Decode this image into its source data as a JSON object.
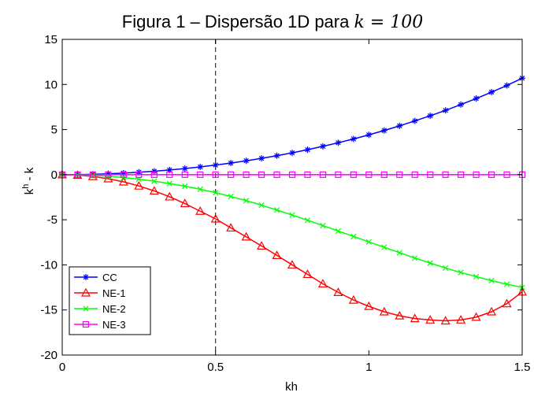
{
  "chart_data": {
    "type": "line",
    "title": "Figura 1 – Dispersão 1D para",
    "title_math": "k = 100",
    "xlabel": "kh",
    "ylabel": "k",
    "ylabel_sup": "h",
    "ylabel_rest": " - k",
    "xlim": [
      0,
      1.5
    ],
    "ylim": [
      -20,
      15
    ],
    "x_ticks": [
      0,
      0.5,
      1,
      1.5
    ],
    "x_tick_labels": [
      "0",
      "0.5",
      "1",
      "1.5"
    ],
    "y_ticks": [
      -20,
      -15,
      -10,
      -5,
      0,
      5,
      10,
      15
    ],
    "y_tick_labels": [
      "-20",
      "-15",
      "-10",
      "-5",
      "0",
      "5",
      "10",
      "15"
    ],
    "grid": false,
    "legend_position": "bottom-left",
    "reference_lines": {
      "vertical_dashed_x": 0.5,
      "horizontal_y": 0
    },
    "series": [
      {
        "name": "CC",
        "color": "#0000ff",
        "marker": "star",
        "x": [
          0,
          0.05,
          0.1,
          0.15,
          0.2,
          0.25,
          0.3,
          0.35,
          0.4,
          0.45,
          0.5,
          0.55,
          0.6,
          0.65,
          0.7,
          0.75,
          0.8,
          0.85,
          0.9,
          0.95,
          1.0,
          1.05,
          1.1,
          1.15,
          1.2,
          1.25,
          1.3,
          1.35,
          1.4,
          1.45,
          1.5
        ],
        "y": [
          0,
          0.01,
          0.04,
          0.1,
          0.17,
          0.27,
          0.38,
          0.52,
          0.68,
          0.86,
          1.07,
          1.29,
          1.54,
          1.81,
          2.1,
          2.42,
          2.77,
          3.14,
          3.54,
          3.96,
          4.42,
          4.9,
          5.41,
          5.96,
          6.53,
          7.13,
          7.77,
          8.44,
          9.15,
          9.89,
          10.7
        ]
      },
      {
        "name": "NE-1",
        "color": "#ff0000",
        "marker": "triangle",
        "x": [
          0,
          0.05,
          0.1,
          0.15,
          0.2,
          0.25,
          0.3,
          0.35,
          0.4,
          0.45,
          0.5,
          0.55,
          0.6,
          0.65,
          0.7,
          0.75,
          0.8,
          0.85,
          0.9,
          0.95,
          1.0,
          1.05,
          1.1,
          1.15,
          1.2,
          1.25,
          1.3,
          1.35,
          1.4,
          1.45,
          1.5
        ],
        "y": [
          0,
          -0.05,
          -0.2,
          -0.45,
          -0.8,
          -1.25,
          -1.8,
          -2.45,
          -3.2,
          -4.05,
          -4.9,
          -5.9,
          -6.9,
          -7.9,
          -8.95,
          -10.0,
          -11.05,
          -12.1,
          -13.05,
          -13.9,
          -14.6,
          -15.2,
          -15.65,
          -15.95,
          -16.1,
          -16.2,
          -16.1,
          -15.8,
          -15.2,
          -14.3,
          -13.0
        ]
      },
      {
        "name": "NE-2",
        "color": "#00ff00",
        "marker": "x",
        "x": [
          0,
          0.05,
          0.1,
          0.15,
          0.2,
          0.25,
          0.3,
          0.35,
          0.4,
          0.45,
          0.5,
          0.55,
          0.6,
          0.65,
          0.7,
          0.75,
          0.8,
          0.85,
          0.9,
          0.95,
          1.0,
          1.05,
          1.1,
          1.15,
          1.2,
          1.25,
          1.3,
          1.35,
          1.4,
          1.45,
          1.5
        ],
        "y": [
          0,
          -0.02,
          -0.08,
          -0.18,
          -0.32,
          -0.5,
          -0.72,
          -0.98,
          -1.28,
          -1.62,
          -2.0,
          -2.42,
          -2.88,
          -3.38,
          -3.92,
          -4.48,
          -5.05,
          -5.65,
          -6.25,
          -6.85,
          -7.45,
          -8.05,
          -8.65,
          -9.25,
          -9.8,
          -10.35,
          -10.85,
          -11.3,
          -11.75,
          -12.15,
          -12.5
        ]
      },
      {
        "name": "NE-3",
        "color": "#ff00ff",
        "marker": "square",
        "x": [
          0,
          0.05,
          0.1,
          0.15,
          0.2,
          0.25,
          0.3,
          0.35,
          0.4,
          0.45,
          0.5,
          0.55,
          0.6,
          0.65,
          0.7,
          0.75,
          0.8,
          0.85,
          0.9,
          0.95,
          1.0,
          1.05,
          1.1,
          1.15,
          1.2,
          1.25,
          1.3,
          1.35,
          1.4,
          1.45,
          1.5
        ],
        "y": [
          0,
          0,
          0,
          0,
          0,
          0,
          0,
          0,
          0,
          0,
          0,
          0,
          0,
          0,
          0,
          0,
          0,
          0,
          0,
          0,
          0,
          0,
          0,
          0,
          0,
          0,
          0,
          0,
          0,
          0,
          0
        ]
      }
    ]
  }
}
